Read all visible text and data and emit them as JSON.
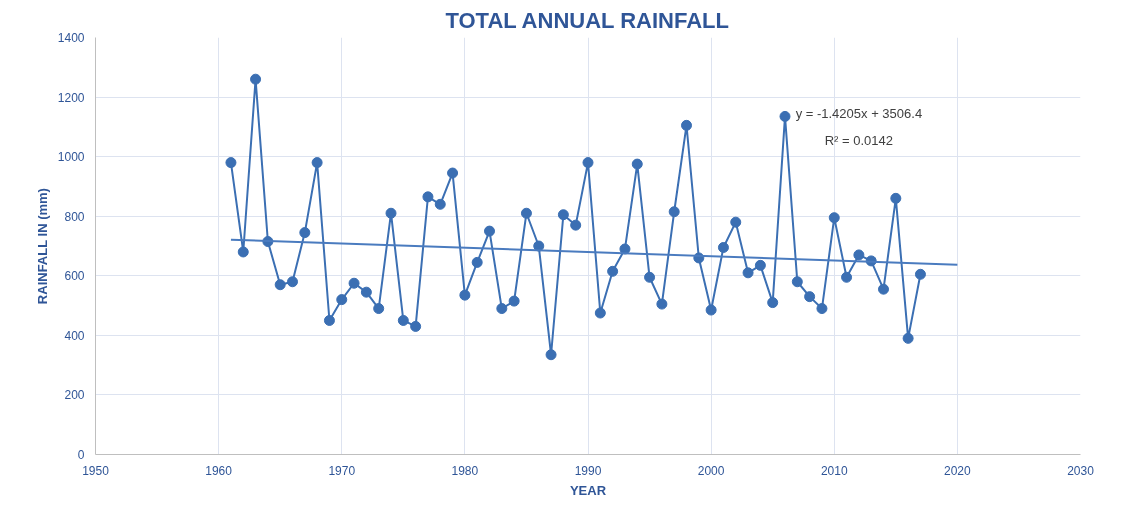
{
  "chart_data": {
    "type": "line",
    "title": "TOTAL ANNUAL RAINFALL",
    "xlabel": "YEAR",
    "ylabel": "RAINFALL IN (mm)",
    "x": [
      1961,
      1962,
      1963,
      1964,
      1965,
      1966,
      1967,
      1968,
      1969,
      1970,
      1971,
      1972,
      1973,
      1974,
      1975,
      1976,
      1977,
      1978,
      1979,
      1980,
      1981,
      1982,
      1983,
      1984,
      1985,
      1986,
      1987,
      1988,
      1989,
      1990,
      1991,
      1992,
      1993,
      1994,
      1995,
      1996,
      1997,
      1998,
      1999,
      2000,
      2001,
      2002,
      2003,
      2004,
      2005,
      2006,
      2007,
      2008,
      2009,
      2010,
      2011,
      2012,
      2013,
      2014,
      2015,
      2016,
      2017
    ],
    "series": [
      {
        "color": "#3b6fb3",
        "marker": "circle",
        "values": [
          980,
          680,
          1260,
          715,
          570,
          580,
          745,
          980,
          450,
          520,
          575,
          545,
          490,
          810,
          450,
          430,
          865,
          840,
          945,
          535,
          645,
          750,
          490,
          515,
          810,
          700,
          335,
          805,
          770,
          980,
          475,
          615,
          690,
          975,
          595,
          505,
          815,
          1105,
          660,
          485,
          695,
          780,
          610,
          635,
          510,
          1135,
          580,
          530,
          490,
          795,
          595,
          670,
          650,
          555,
          860,
          390,
          605
        ]
      },
      {
        "type": "line",
        "color": "#4a7bbf",
        "marker": "none",
        "x": [
          1961,
          2020
        ],
        "values": [
          721,
          637
        ]
      }
    ],
    "annotations": [
      "y = -1.4205x + 3506.4",
      "R² = 0.0142"
    ],
    "xlim": [
      1950,
      2030
    ],
    "xticks": [
      1950,
      1960,
      1970,
      1980,
      1990,
      2000,
      2010,
      2020,
      2030
    ],
    "ylim": [
      0,
      1400
    ],
    "yticks": [
      0,
      200,
      400,
      600,
      800,
      1000,
      1200,
      1400
    ],
    "grid": true
  }
}
